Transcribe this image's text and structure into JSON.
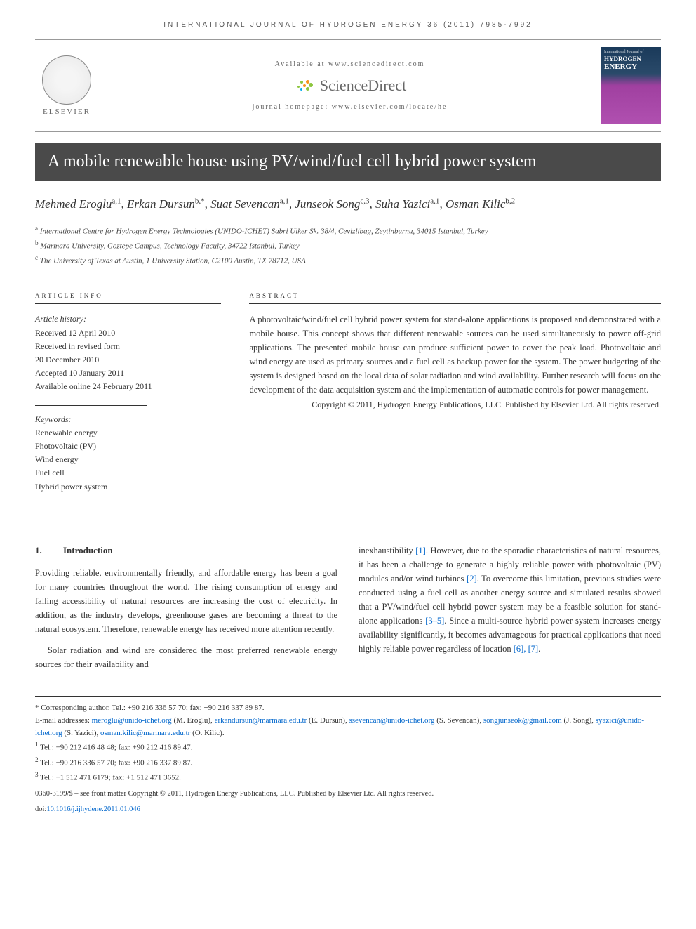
{
  "journal_header": "INTERNATIONAL JOURNAL OF HYDROGEN ENERGY 36 (2011) 7985-7992",
  "banner": {
    "elsevier": "ELSEVIER",
    "available": "Available at www.sciencedirect.com",
    "sciencedirect": "ScienceDirect",
    "homepage": "journal homepage: www.elsevier.com/locate/he",
    "cover": {
      "line1": "International Journal of",
      "line2": "HYDROGEN",
      "line3": "ENERGY"
    },
    "sd_dot_colors": [
      "#f7941e",
      "#f7941e",
      "#8dc63f",
      "#8dc63f",
      "#8dc63f",
      "#8dc63f",
      "#8dc63f",
      "#00aeef"
    ]
  },
  "title": "A mobile renewable house using PV/wind/fuel cell hybrid power system",
  "authors_html": "Mehmed Eroglu<sup>a,1</sup>, Erkan Dursun<sup>b,*</sup>, Suat Sevencan<sup>a,1</sup>, Junseok Song<sup>c,3</sup>, Suha Yazici<sup>a,1</sup>, Osman Kilic<sup>b,2</sup>",
  "affiliations": {
    "a": "International Centre for Hydrogen Energy Technologies (UNIDO-ICHET) Sabri Ulker Sk. 38/4, Cevizlibag, Zeytinburnu, 34015 Istanbul, Turkey",
    "b": "Marmara University, Goztepe Campus, Technology Faculty, 34722 Istanbul, Turkey",
    "c": "The University of Texas at Austin, 1 University Station, C2100 Austin, TX 78712, USA"
  },
  "info": {
    "label": "ARTICLE INFO",
    "history_heading": "Article history:",
    "history": [
      "Received 12 April 2010",
      "Received in revised form",
      "20 December 2010",
      "Accepted 10 January 2011",
      "Available online 24 February 2011"
    ],
    "keywords_heading": "Keywords:",
    "keywords": [
      "Renewable energy",
      "Photovoltaic (PV)",
      "Wind energy",
      "Fuel cell",
      "Hybrid power system"
    ]
  },
  "abstract": {
    "label": "ABSTRACT",
    "text": "A photovoltaic/wind/fuel cell hybrid power system for stand-alone applications is proposed and demonstrated with a mobile house. This concept shows that different renewable sources can be used simultaneously to power off-grid applications. The presented mobile house can produce sufficient power to cover the peak load. Photovoltaic and wind energy are used as primary sources and a fuel cell as backup power for the system. The power budgeting of the system is designed based on the local data of solar radiation and wind availability. Further research will focus on the development of the data acquisition system and the implementation of automatic controls for power management.",
    "copyright": "Copyright © 2011, Hydrogen Energy Publications, LLC. Published by Elsevier Ltd. All rights reserved."
  },
  "intro": {
    "num": "1.",
    "heading": "Introduction",
    "p1": "Providing reliable, environmentally friendly, and affordable energy has been a goal for many countries throughout the world. The rising consumption of energy and falling accessibility of natural resources are increasing the cost of electricity. In addition, as the industry develops, greenhouse gases are becoming a threat to the natural ecosystem. Therefore, renewable energy has received more attention recently.",
    "p2a": "Solar radiation and wind are considered the most preferred renewable energy sources for their availability and",
    "p2b_pre": "inexhaustibility ",
    "ref1": "[1]",
    "p2b_post": ". However, due to the sporadic characteristics of natural resources, it has been a challenge to generate a highly reliable power with photovoltaic (PV) modules and/or wind turbines ",
    "ref2": "[2]",
    "p2c": ". To overcome this limitation, previous studies were conducted using a fuel cell as another energy source and simulated results showed that a PV/wind/fuel cell hybrid power system may be a feasible solution for stand-alone applications ",
    "ref3": "[3–5]",
    "p2d": ". Since a multi-source hybrid power system increases energy availability significantly, it becomes advantageous for practical applications that need highly reliable power regardless of location ",
    "ref4": "[6], [7]",
    "p2e": "."
  },
  "footnotes": {
    "corresponding": "* Corresponding author. Tel.: +90 216 336 57 70; fax: +90 216 337 89 87.",
    "emails_label": "E-mail addresses: ",
    "emails": [
      {
        "addr": "meroglu@unido-ichet.org",
        "who": " (M. Eroglu), "
      },
      {
        "addr": "erkandursun@marmara.edu.tr",
        "who": " (E. Dursun), "
      },
      {
        "addr": "ssevencan@unido-ichet.org",
        "who": " (S. Sevencan), "
      },
      {
        "addr": "songjunseok@gmail.com",
        "who": " (J. Song), "
      },
      {
        "addr": "syazici@unido-ichet.org",
        "who": " (S. Yazici), "
      },
      {
        "addr": "osman.kilic@marmara.edu.tr",
        "who": " (O. Kilic)."
      }
    ],
    "tel1": "Tel.: +90 212 416 48 48; fax: +90 212 416 89 47.",
    "tel2": "Tel.: +90 216 336 57 70; fax: +90 216 337 89 87.",
    "tel3": "Tel.: +1 512 471 6179; fax: +1 512 471 3652.",
    "issn": "0360-3199/$ – see front matter Copyright © 2011, Hydrogen Energy Publications, LLC. Published by Elsevier Ltd. All rights reserved.",
    "doi_label": "doi:",
    "doi": "10.1016/j.ijhydene.2011.01.046"
  },
  "colors": {
    "title_bar_bg": "#4a4a4a",
    "link": "#0066cc",
    "text": "#333333"
  }
}
